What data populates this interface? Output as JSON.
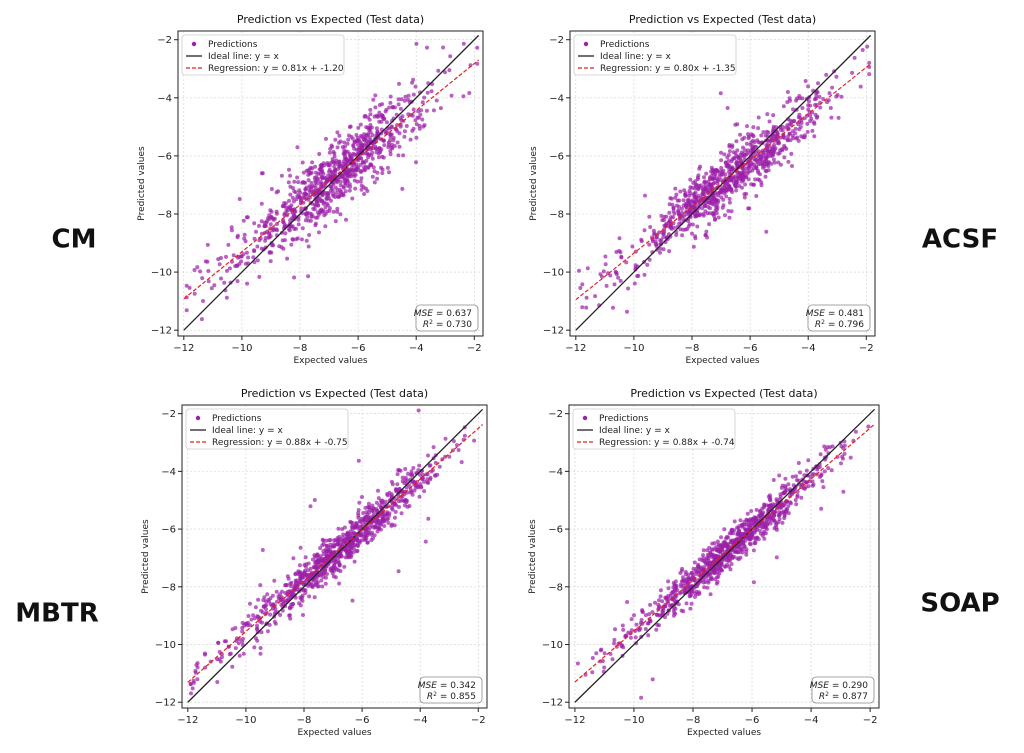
{
  "chart_data": [
    {
      "label": "CM",
      "type": "scatter",
      "title": "Prediction vs Expected (Test data)",
      "xlabel": "Expected values",
      "ylabel": "Predicted values",
      "xlim": [
        -12.2,
        -1.7
      ],
      "ylim": [
        -12.2,
        -1.7
      ],
      "xticks": [
        -12,
        -10,
        -8,
        -6,
        -4,
        -2
      ],
      "yticks": [
        -12,
        -10,
        -8,
        -6,
        -4,
        -2
      ],
      "grid": true,
      "legend_position": "top-left",
      "legend": [
        "Predictions",
        "Ideal line: y = x",
        "Regression: y = 0.81x + -1.20"
      ],
      "ideal_line": {
        "slope": 1,
        "intercept": 0
      },
      "regression": {
        "slope": 0.81,
        "intercept": -1.2
      },
      "mse": "0.637",
      "r2": "0.730",
      "scatter_spread": 0.95,
      "colors": {
        "points": "#9b1fa8",
        "ideal": "#222222",
        "regression": "#e02020"
      }
    },
    {
      "label": "ACSF",
      "type": "scatter",
      "title": "Prediction vs Expected (Test data)",
      "xlabel": "Expected values",
      "ylabel": "Predicted values",
      "xlim": [
        -12.2,
        -1.7
      ],
      "ylim": [
        -12.2,
        -1.7
      ],
      "xticks": [
        -12,
        -10,
        -8,
        -6,
        -4,
        -2
      ],
      "yticks": [
        -12,
        -10,
        -8,
        -6,
        -4,
        -2
      ],
      "grid": true,
      "legend_position": "top-left",
      "legend": [
        "Predictions",
        "Ideal line: y = x",
        "Regression: y = 0.80x + -1.35"
      ],
      "ideal_line": {
        "slope": 1,
        "intercept": 0
      },
      "regression": {
        "slope": 0.8,
        "intercept": -1.35
      },
      "mse": "0.481",
      "r2": "0.796",
      "scatter_spread": 0.8,
      "colors": {
        "points": "#9b1fa8",
        "ideal": "#222222",
        "regression": "#e02020"
      }
    },
    {
      "label": "MBTR",
      "type": "scatter",
      "title": "Prediction vs Expected (Test data)",
      "xlabel": "Expected values",
      "ylabel": "Predicted values",
      "xlim": [
        -12.2,
        -1.7
      ],
      "ylim": [
        -12.2,
        -1.7
      ],
      "xticks": [
        -12,
        -10,
        -8,
        -6,
        -4,
        -2
      ],
      "yticks": [
        -12,
        -10,
        -8,
        -6,
        -4,
        -2
      ],
      "grid": true,
      "legend_position": "top-left",
      "legend": [
        "Predictions",
        "Ideal line: y = x",
        "Regression: y = 0.88x + -0.75"
      ],
      "ideal_line": {
        "slope": 1,
        "intercept": 0
      },
      "regression": {
        "slope": 0.88,
        "intercept": -0.75
      },
      "mse": "0.342",
      "r2": "0.855",
      "scatter_spread": 0.6,
      "colors": {
        "points": "#9b1fa8",
        "ideal": "#222222",
        "regression": "#e02020"
      }
    },
    {
      "label": "SOAP",
      "type": "scatter",
      "title": "Prediction vs Expected (Test data)",
      "xlabel": "Expected values",
      "ylabel": "Predicted values",
      "xlim": [
        -12.2,
        -1.7
      ],
      "ylim": [
        -12.2,
        -1.7
      ],
      "xticks": [
        -12,
        -10,
        -8,
        -6,
        -4,
        -2
      ],
      "yticks": [
        -12,
        -10,
        -8,
        -6,
        -4,
        -2
      ],
      "grid": true,
      "legend_position": "top-left",
      "legend": [
        "Predictions",
        "Ideal line: y = x",
        "Regression: y = 0.88x + -0.74"
      ],
      "ideal_line": {
        "slope": 1,
        "intercept": 0
      },
      "regression": {
        "slope": 0.88,
        "intercept": -0.74
      },
      "mse": "0.290",
      "r2": "0.877",
      "scatter_spread": 0.55,
      "colors": {
        "points": "#9b1fa8",
        "ideal": "#222222",
        "regression": "#e02020"
      }
    }
  ]
}
